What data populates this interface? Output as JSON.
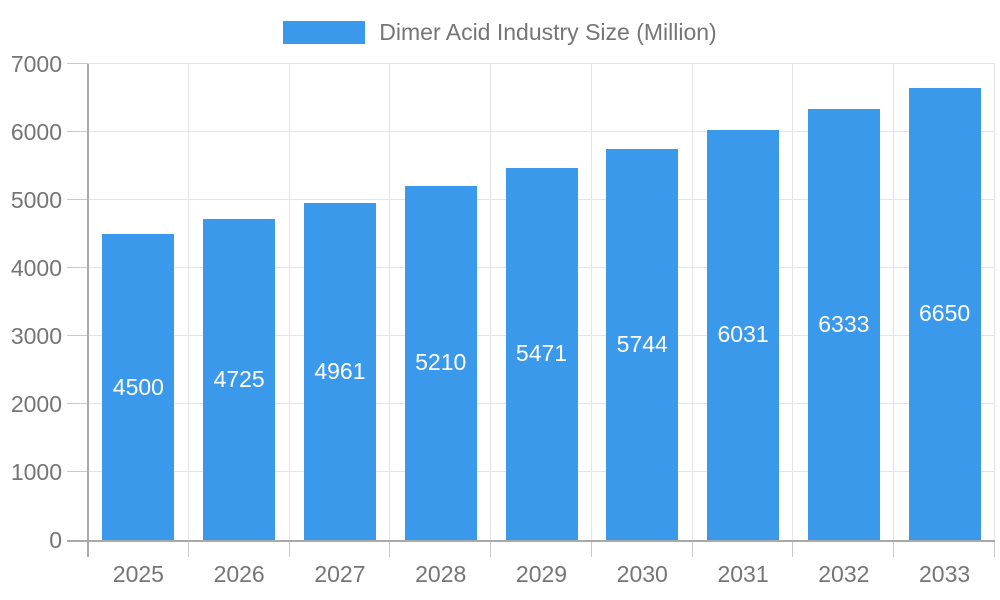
{
  "legend": {
    "label": "Dimer Acid Industry Size (Million)"
  },
  "colors": {
    "bar": "#3B99EC",
    "grid": "#e4e4e4",
    "axis": "#a9a9a9",
    "tick": "#c9c9c9",
    "text": "#757575",
    "value_label": "#ffffff"
  },
  "chart_data": {
    "type": "bar",
    "title": "Dimer Acid Industry Size (Million)",
    "categories": [
      "2025",
      "2026",
      "2027",
      "2028",
      "2029",
      "2030",
      "2031",
      "2032",
      "2033"
    ],
    "values": [
      4500,
      4725,
      4961,
      5210,
      5471,
      5744,
      6031,
      6333,
      6650
    ],
    "series_name": "Dimer Acid Industry Size (Million)",
    "xlabel": "",
    "ylabel": "",
    "ylim": [
      0,
      7000
    ],
    "ytick_step": 1000,
    "ytick_labels": [
      "0",
      "1000",
      "2000",
      "3000",
      "4000",
      "5000",
      "6000",
      "7000"
    ],
    "grid": true,
    "legend_position": "top",
    "value_labels": "inside-center"
  }
}
